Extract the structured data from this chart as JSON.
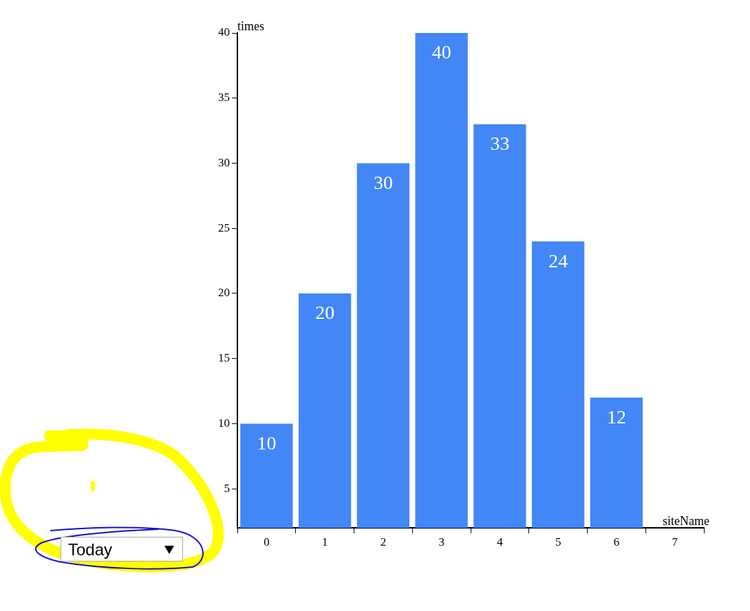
{
  "chart_data": {
    "type": "bar",
    "categories": [
      "0",
      "1",
      "2",
      "3",
      "4",
      "5",
      "6",
      "7"
    ],
    "values": [
      10,
      20,
      30,
      40,
      33,
      24,
      12,
      null
    ],
    "color": "#4287f5",
    "xlabel": "siteName",
    "ylabel": "times",
    "ylim": [
      2,
      40
    ],
    "yticks": [
      5,
      10,
      15,
      20,
      25,
      30,
      35,
      40
    ],
    "data_labels": true,
    "annotations": [
      "Today"
    ]
  }
}
